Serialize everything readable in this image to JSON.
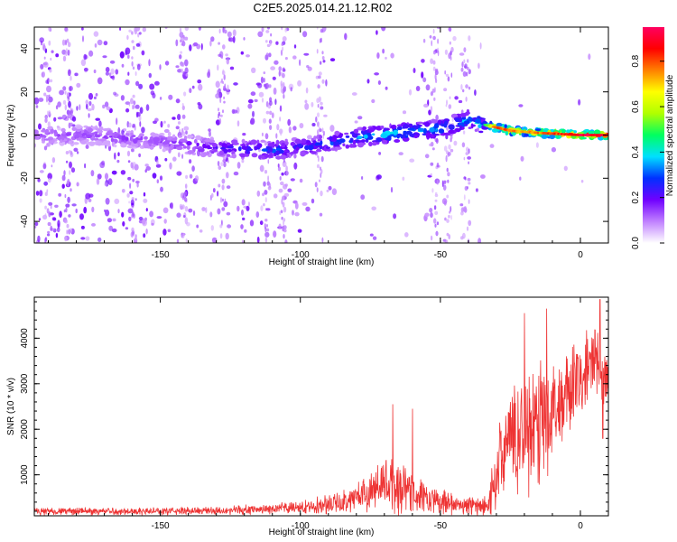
{
  "title": "C2E5.2025.014.21.12.R02",
  "chart_data": [
    {
      "type": "heatmap",
      "xlabel": "Height of straight line (km)",
      "ylabel": "Frequency (Hz)",
      "xlim": [
        -195,
        10
      ],
      "ylim": [
        -50,
        50
      ],
      "x_ticks": [
        -150,
        -100,
        -50,
        0
      ],
      "y_ticks": [
        -40,
        -20,
        0,
        20,
        40
      ],
      "colorbar": {
        "label": "Normalized spectral amplitude",
        "range": [
          0,
          0.95
        ],
        "ticks": [
          0.0,
          0.2,
          0.4,
          0.6,
          0.8
        ],
        "tick_labels": [
          "0.0",
          "0.2",
          "0.4",
          "0.6",
          "0.8"
        ],
        "colors": [
          "#ffffff",
          "#c080ff",
          "#7000ff",
          "#0030ff",
          "#00e0ff",
          "#00ff60",
          "#b0ff00",
          "#ffff00",
          "#ff8000",
          "#ff0000",
          "#ff0060"
        ]
      },
      "ridge": [
        {
          "x": -190,
          "f": 0
        },
        {
          "x": -175,
          "f": 0
        },
        {
          "x": -150,
          "f": -3
        },
        {
          "x": -130,
          "f": -6
        },
        {
          "x": -110,
          "f": -7
        },
        {
          "x": -95,
          "f": -5
        },
        {
          "x": -80,
          "f": -1
        },
        {
          "x": -65,
          "f": 1
        },
        {
          "x": -50,
          "f": 3
        },
        {
          "x": -40,
          "f": 7
        },
        {
          "x": -35,
          "f": 5
        },
        {
          "x": -25,
          "f": 2
        },
        {
          "x": -15,
          "f": 1
        },
        {
          "x": 0,
          "f": 0
        },
        {
          "x": 10,
          "f": 0
        }
      ],
      "ridge_amplitude": [
        {
          "x": -190,
          "a": 0.15
        },
        {
          "x": -150,
          "a": 0.15
        },
        {
          "x": -130,
          "a": 0.22
        },
        {
          "x": -110,
          "a": 0.3
        },
        {
          "x": -100,
          "a": 0.25
        },
        {
          "x": -85,
          "a": 0.32
        },
        {
          "x": -70,
          "a": 0.38
        },
        {
          "x": -50,
          "a": 0.35
        },
        {
          "x": -38,
          "a": 0.35
        },
        {
          "x": -33,
          "a": 0.55
        },
        {
          "x": -30,
          "a": 0.85
        },
        {
          "x": -20,
          "a": 0.75
        },
        {
          "x": -10,
          "a": 0.82
        },
        {
          "x": 0,
          "a": 0.95
        },
        {
          "x": 10,
          "a": 0.9
        }
      ]
    },
    {
      "type": "line",
      "xlabel": "Height of straight line (km)",
      "ylabel": "SNR (10 * v/v)",
      "xlim": [
        -195,
        10
      ],
      "ylim": [
        100,
        4900
      ],
      "x_ticks": [
        -150,
        -100,
        -50,
        0
      ],
      "y_ticks": [
        1000,
        2000,
        3000,
        4000
      ],
      "series": [
        {
          "color": "#ee3333",
          "envelope": [
            {
              "x": -195,
              "base": 200,
              "amp": 100
            },
            {
              "x": -150,
              "base": 200,
              "amp": 100
            },
            {
              "x": -120,
              "base": 230,
              "amp": 120
            },
            {
              "x": -100,
              "base": 280,
              "amp": 160
            },
            {
              "x": -85,
              "base": 400,
              "amp": 300
            },
            {
              "x": -75,
              "base": 650,
              "amp": 500
            },
            {
              "x": -68,
              "base": 800,
              "amp": 800
            },
            {
              "x": -62,
              "base": 700,
              "amp": 700
            },
            {
              "x": -55,
              "base": 450,
              "amp": 400
            },
            {
              "x": -45,
              "base": 350,
              "amp": 250
            },
            {
              "x": -33,
              "base": 300,
              "amp": 250
            },
            {
              "x": -30,
              "base": 1100,
              "amp": 1000
            },
            {
              "x": -25,
              "base": 1800,
              "amp": 1400
            },
            {
              "x": -15,
              "base": 2200,
              "amp": 1800
            },
            {
              "x": -5,
              "base": 2700,
              "amp": 1200
            },
            {
              "x": 5,
              "base": 3500,
              "amp": 1000
            },
            {
              "x": 10,
              "base": 3000,
              "amp": 1000
            }
          ],
          "peaks": [
            {
              "x": -67,
              "y": 2550
            },
            {
              "x": -60,
              "y": 2450
            },
            {
              "x": -12,
              "y": 4650
            },
            {
              "x": -20,
              "y": 4550
            },
            {
              "x": 7,
              "y": 4850
            },
            {
              "x": 8,
              "y": 1800
            }
          ]
        }
      ]
    }
  ]
}
